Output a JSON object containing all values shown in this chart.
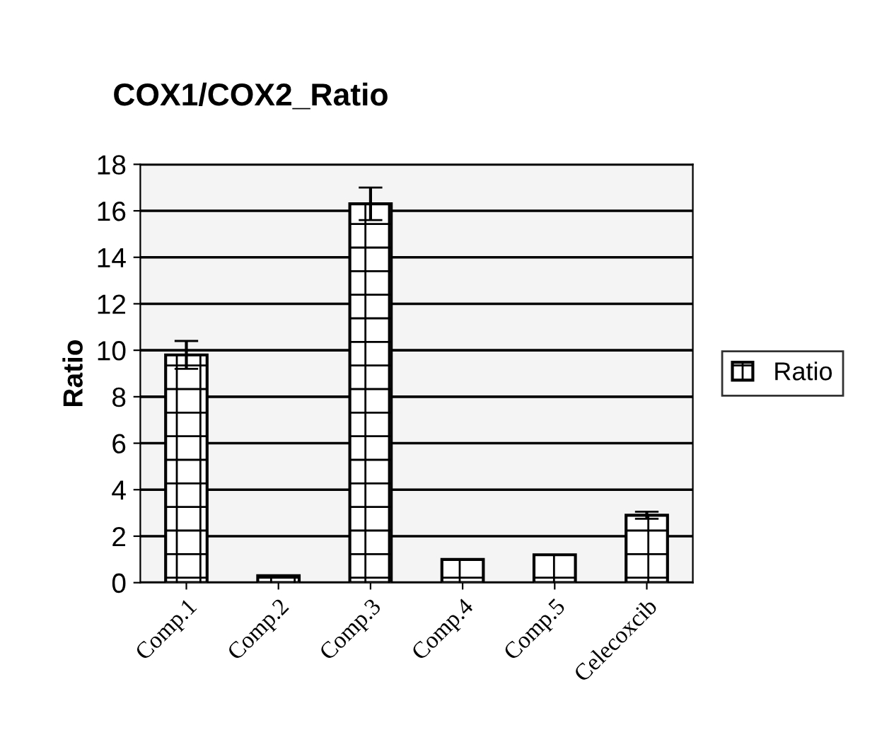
{
  "chart_data": {
    "type": "bar",
    "title": "COX1/COX2_Ratio",
    "ylabel": "Ratio",
    "categories": [
      "Comp.1",
      "Comp.2",
      "Comp.3",
      "Comp.4",
      "Comp.5",
      "Celecoxcib"
    ],
    "series": [
      {
        "name": "Ratio",
        "color": "#000000",
        "values": [
          9.8,
          0.3,
          16.3,
          1.0,
          1.2,
          2.9
        ],
        "errors": [
          0.6,
          null,
          0.7,
          null,
          null,
          0.15
        ]
      }
    ],
    "ylim": [
      0,
      18
    ],
    "yticks": [
      0,
      2,
      4,
      6,
      8,
      10,
      12,
      14,
      16,
      18
    ],
    "grid": "y",
    "legend": "right"
  }
}
